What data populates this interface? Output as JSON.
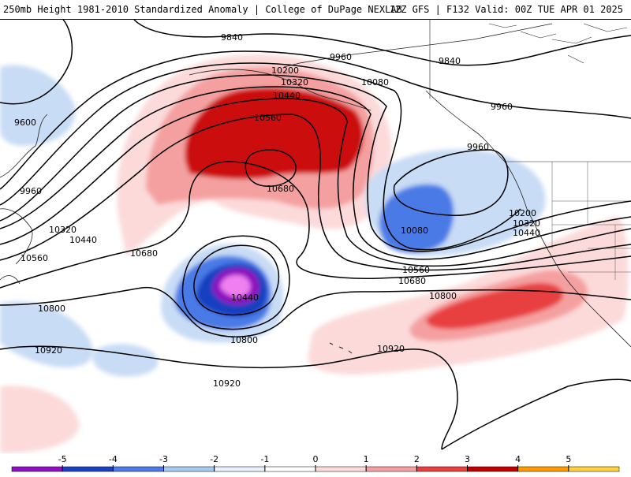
{
  "header": {
    "title_left": "250mb Height 1981-2010 Standardized Anomaly | College of DuPage NEXLAB",
    "title_right": "12Z GFS | F132 Valid: 00Z TUE APR 01 2025"
  },
  "contour_labels": {
    "c9840a": "9840",
    "c9840b": "9840",
    "c9960a": "9960",
    "c9960b": "9960",
    "c9960c": "9960",
    "c9960d": "9960",
    "c9600": "9600",
    "c10200a": "10200",
    "c10200b": "10200",
    "c10320a": "10320",
    "c10320b": "10320",
    "c10320c": "10320",
    "c10440a": "10440",
    "c10440b": "10440",
    "c10440c": "10440",
    "c10440d": "10440",
    "c10560a": "10560",
    "c10560b": "10560",
    "c10560c": "10560",
    "c10680a": "10680",
    "c10680b": "10680",
    "c10680c": "10680",
    "c10080a": "10080",
    "c10080b": "10080",
    "c10800a": "10800",
    "c10800b": "10800",
    "c10800c": "10800",
    "c10920a": "10920",
    "c10920b": "10920",
    "c10920c": "10920"
  },
  "legend": {
    "ticks": [
      "-5",
      "-4",
      "-3",
      "-2",
      "-1",
      "0",
      "1",
      "2",
      "3",
      "4",
      "5"
    ],
    "colors": [
      "#f080f0",
      "#9010c0",
      "#1840c0",
      "#4a7ae6",
      "#a8c8f0",
      "#e8f0fb",
      "#ffffff",
      "#fcdada",
      "#f5a0a0",
      "#e84040",
      "#c00000",
      "#ff9a00",
      "#ffd040"
    ]
  }
}
